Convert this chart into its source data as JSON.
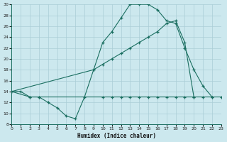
{
  "xlabel": "Humidex (Indice chaleur)",
  "bg_color": "#cce8ee",
  "line_color": "#1a6e60",
  "grid_color": "#aacdd6",
  "xlim": [
    0,
    23
  ],
  "ylim": [
    8,
    30
  ],
  "yticks": [
    8,
    10,
    12,
    14,
    16,
    18,
    20,
    22,
    24,
    26,
    28,
    30
  ],
  "xticks": [
    0,
    1,
    2,
    3,
    4,
    5,
    6,
    7,
    8,
    9,
    10,
    11,
    12,
    13,
    14,
    15,
    16,
    17,
    18,
    19,
    20,
    21,
    22,
    23
  ],
  "line1_x": [
    0,
    1,
    2,
    3,
    4,
    5,
    6,
    7,
    8,
    9,
    10,
    11,
    12,
    13,
    14,
    15,
    16,
    17,
    18,
    19,
    20,
    21,
    22
  ],
  "line1_y": [
    14,
    14,
    13,
    13,
    12,
    11,
    9.5,
    9,
    13,
    18,
    23,
    25,
    27.5,
    30,
    30,
    30,
    29,
    27,
    26.5,
    22,
    18,
    15,
    13
  ],
  "line2_x": [
    0,
    9,
    10,
    11,
    12,
    13,
    14,
    15,
    16,
    17,
    18,
    19,
    20,
    21,
    22,
    23
  ],
  "line2_y": [
    14,
    18,
    19,
    20,
    21,
    22,
    23,
    24,
    25,
    26.5,
    27,
    23,
    13,
    13,
    13,
    13
  ],
  "line3_x": [
    0,
    2,
    3,
    10,
    11,
    12,
    13,
    14,
    15,
    16,
    17,
    18,
    19,
    20,
    21,
    22,
    23
  ],
  "line3_y": [
    14,
    13,
    13,
    13,
    13,
    13,
    13,
    13,
    13,
    13,
    13,
    13,
    13,
    13,
    13,
    13,
    13
  ]
}
